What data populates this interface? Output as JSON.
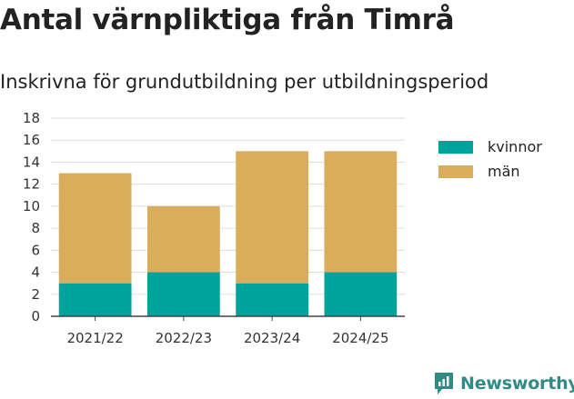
{
  "title": "Antal värnpliktiga från Timrå",
  "subtitle": "Inskrivna för grundutbildning per utbildningsperiod",
  "brand": "Newsworthy",
  "colors": {
    "kvinnor": "#00a39b",
    "man": "#d9ad5b",
    "grid": "#dddddd",
    "axis": "#444444",
    "brand": "#2e8b86"
  },
  "chart_data": {
    "type": "bar",
    "stacked": true,
    "categories": [
      "2021/22",
      "2022/23",
      "2023/24",
      "2024/25"
    ],
    "series": [
      {
        "name": "kvinnor",
        "values": [
          3,
          4,
          3,
          4
        ]
      },
      {
        "name": "män",
        "values": [
          10,
          6,
          12,
          11
        ]
      }
    ],
    "ylim": [
      0,
      18
    ],
    "yticks": [
      0,
      2,
      4,
      6,
      8,
      10,
      12,
      14,
      16,
      18
    ],
    "grid": true,
    "legend": "right"
  }
}
